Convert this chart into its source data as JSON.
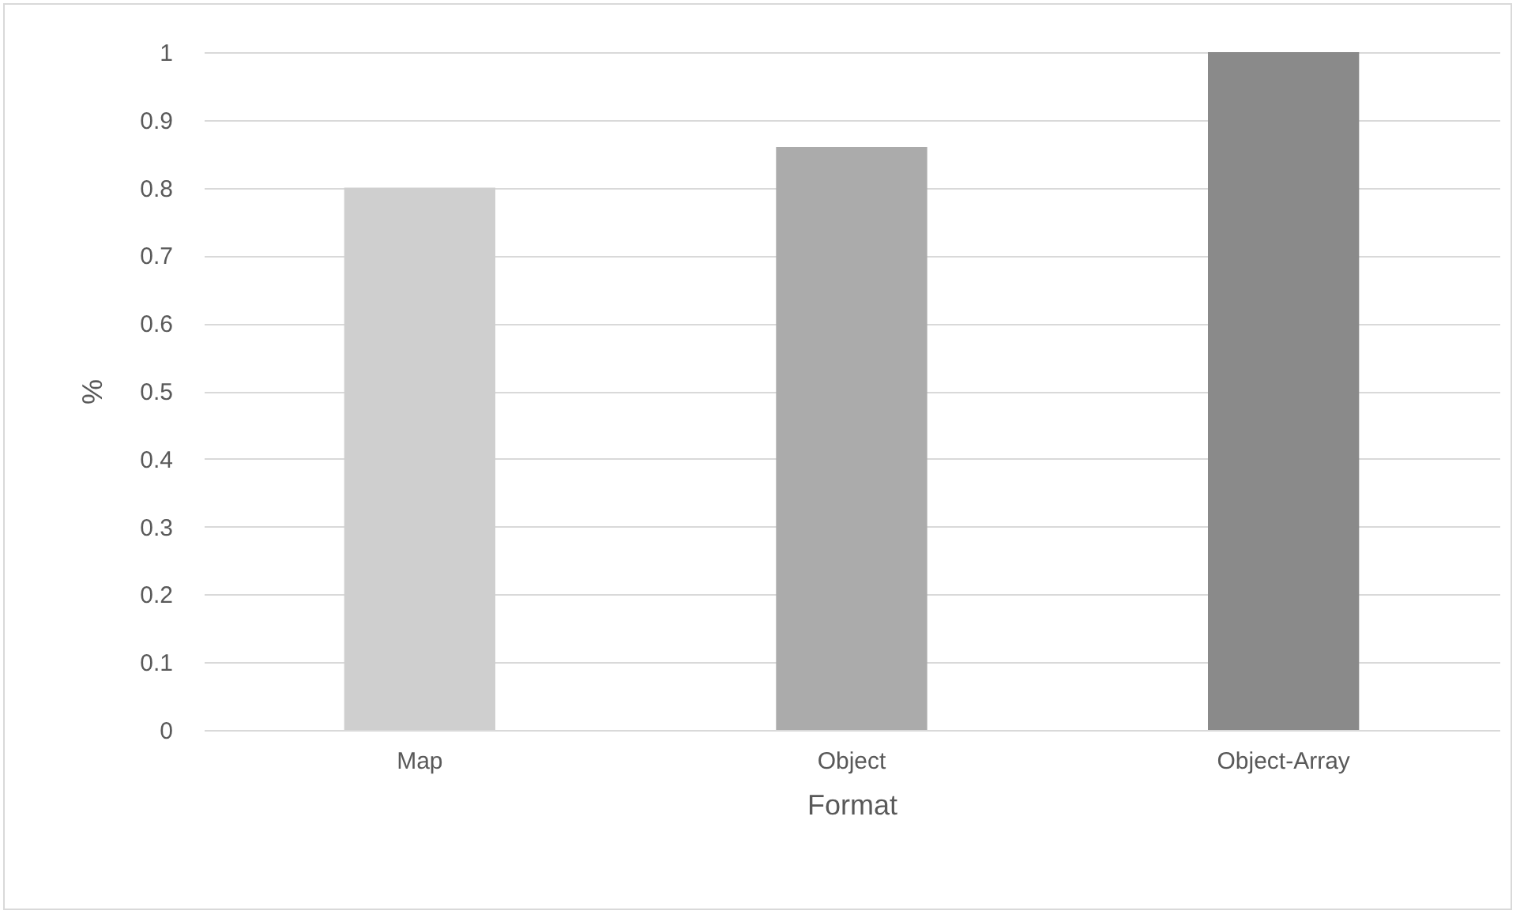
{
  "chart_data": {
    "type": "bar",
    "xlabel": "Format",
    "ylabel": "%",
    "categories": [
      "Map",
      "Object",
      "Object-Array"
    ],
    "values": [
      0.8,
      0.86,
      1
    ],
    "colors": [
      "#cfcfcf",
      "#ababab",
      "#8a8a8a"
    ],
    "ylim": [
      0,
      1
    ],
    "yticks": [
      0,
      0.1,
      0.2,
      0.3,
      0.4,
      0.5,
      0.6,
      0.7,
      0.8,
      0.9,
      1
    ],
    "grid": "y"
  }
}
